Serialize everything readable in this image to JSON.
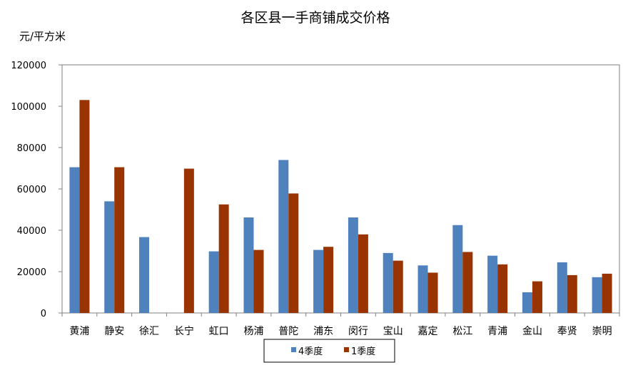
{
  "chart_data": {
    "type": "bar",
    "title": "各区县一手商铺成交价格",
    "ylabel": "元/平方米",
    "xlabel": "",
    "ylim": [
      0,
      120000
    ],
    "yticks": [
      0,
      20000,
      40000,
      60000,
      80000,
      100000,
      120000
    ],
    "grid": false,
    "legend_position": "bottom",
    "categories": [
      "黄浦",
      "静安",
      "徐汇",
      "长宁",
      "虹口",
      "杨浦",
      "普陀",
      "浦东",
      "闵行",
      "宝山",
      "嘉定",
      "松江",
      "青浦",
      "金山",
      "奉贤",
      "崇明"
    ],
    "series": [
      {
        "name": "4季度",
        "color": "#4F81BD",
        "values": [
          70500,
          54000,
          36700,
          null,
          29800,
          46200,
          74000,
          30500,
          46200,
          29000,
          23000,
          42500,
          27700,
          10000,
          24500,
          17300
        ]
      },
      {
        "name": "1季度",
        "color": "#993300",
        "values": [
          103000,
          70500,
          null,
          69800,
          52500,
          30500,
          57800,
          32000,
          38000,
          25300,
          19500,
          29500,
          23500,
          15300,
          18300,
          19000
        ]
      }
    ]
  }
}
